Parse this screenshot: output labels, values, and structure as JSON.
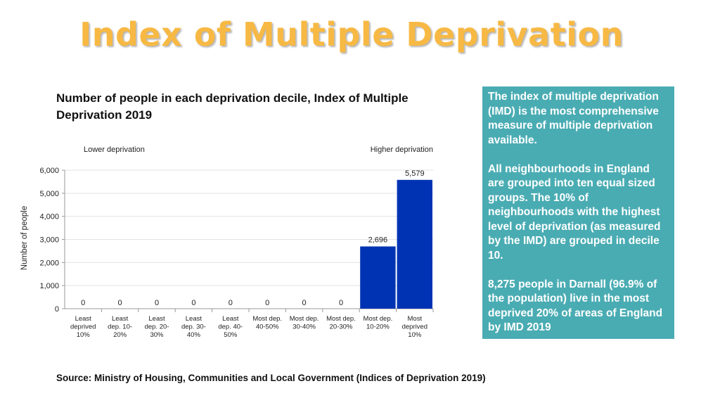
{
  "header": {
    "title": "Index of Multiple Deprivation"
  },
  "chart_data": {
    "type": "bar",
    "title": "Number of people in each deprivation decile, Index of Multiple Deprivation 2019",
    "ylabel": "Number of people",
    "xlabel": "",
    "ylim": [
      0,
      6000
    ],
    "yticks": [
      0,
      1000,
      2000,
      3000,
      4000,
      5000,
      6000
    ],
    "ytick_labels": [
      "0",
      "1,000",
      "2,000",
      "3,000",
      "4,000",
      "5,000",
      "6,000"
    ],
    "annotation_left": "Lower deprivation",
    "annotation_right": "Higher deprivation",
    "categories": [
      [
        "Least",
        "deprived",
        "10%"
      ],
      [
        "Least",
        "dep. 10-",
        "20%"
      ],
      [
        "Least",
        "dep. 20-",
        "30%"
      ],
      [
        "Least",
        "dep. 30-",
        "40%"
      ],
      [
        "Least",
        "dep. 40-",
        "50%"
      ],
      [
        "Most dep.",
        "40-50%"
      ],
      [
        "Most dep.",
        "30-40%"
      ],
      [
        "Most dep.",
        "20-30%"
      ],
      [
        "Most dep.",
        "10-20%"
      ],
      [
        "Most",
        "deprived",
        "10%"
      ]
    ],
    "values": [
      0,
      0,
      0,
      0,
      0,
      0,
      0,
      0,
      2696,
      5579
    ],
    "data_labels": [
      "0",
      "0",
      "0",
      "0",
      "0",
      "0",
      "0",
      "0",
      "2,696",
      "5,579"
    ],
    "bar_color": "#0033b3",
    "grid": true
  },
  "panel": {
    "paragraphs": [
      "The index of multiple deprivation (IMD) is the most comprehensive measure of multiple deprivation available.",
      "All neighbourhoods in England are grouped into ten equal sized groups. The 10% of neighbourhoods with the highest level of deprivation (as measured by the IMD) are grouped in decile 10.",
      "8,275 people in Darnall (96.9% of the population) live in the most deprived 20% of areas of England by IMD 2019"
    ],
    "background": "#4aacb3"
  },
  "footer": {
    "source": "Source: Ministry of Housing, Communities and Local Government (Indices of Deprivation 2019)"
  }
}
